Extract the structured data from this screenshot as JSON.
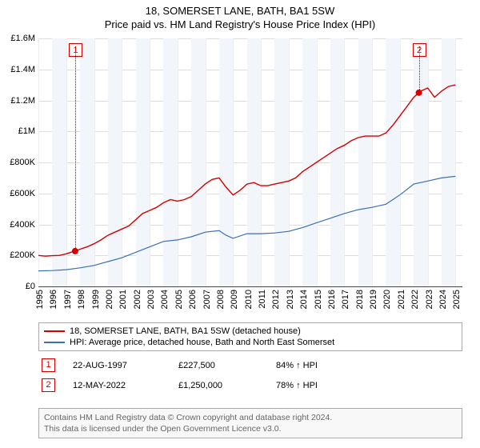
{
  "title_line1": "18, SOMERSET LANE, BATH, BA1 5SW",
  "title_line2": "Price paid vs. HM Land Registry's House Price Index (HPI)",
  "title_fontsize": 13,
  "chart": {
    "type": "line",
    "background_color": "#ffffff",
    "band_color": "#f2f6fb",
    "grid_color_h": "#dddddd",
    "grid_color_v": "#eeeeee",
    "x_years": [
      1995,
      1996,
      1997,
      1998,
      1999,
      2000,
      2001,
      2002,
      2003,
      2004,
      2005,
      2006,
      2007,
      2008,
      2009,
      2010,
      2011,
      2012,
      2013,
      2014,
      2015,
      2016,
      2017,
      2018,
      2019,
      2020,
      2021,
      2022,
      2023,
      2024,
      2025
    ],
    "xlim": [
      1995,
      2025.5
    ],
    "y_ticks": [
      0,
      200000,
      400000,
      600000,
      800000,
      1000000,
      1200000,
      1400000,
      1600000
    ],
    "y_tick_labels": [
      "£0",
      "£200K",
      "£400K",
      "£600K",
      "£800K",
      "£1M",
      "£1.2M",
      "£1.4M",
      "£1.6M"
    ],
    "ylim": [
      0,
      1600000
    ],
    "tick_fontsize": 11,
    "series": [
      {
        "id": "property",
        "label": "18, SOMERSET LANE, BATH, BA1 5SW (detached house)",
        "color": "#d40000",
        "line_width": 1.4,
        "points": [
          [
            1995.0,
            200000
          ],
          [
            1995.5,
            195000
          ],
          [
            1996.0,
            198000
          ],
          [
            1996.5,
            200000
          ],
          [
            1997.0,
            210000
          ],
          [
            1997.5,
            225000
          ],
          [
            1998.0,
            240000
          ],
          [
            1998.5,
            255000
          ],
          [
            1999.0,
            275000
          ],
          [
            1999.5,
            300000
          ],
          [
            2000.0,
            330000
          ],
          [
            2000.5,
            350000
          ],
          [
            2001.0,
            370000
          ],
          [
            2001.5,
            390000
          ],
          [
            2002.0,
            430000
          ],
          [
            2002.5,
            470000
          ],
          [
            2003.0,
            490000
          ],
          [
            2003.5,
            510000
          ],
          [
            2004.0,
            540000
          ],
          [
            2004.5,
            560000
          ],
          [
            2005.0,
            550000
          ],
          [
            2005.5,
            560000
          ],
          [
            2006.0,
            580000
          ],
          [
            2006.5,
            620000
          ],
          [
            2007.0,
            660000
          ],
          [
            2007.5,
            690000
          ],
          [
            2008.0,
            700000
          ],
          [
            2008.5,
            640000
          ],
          [
            2009.0,
            590000
          ],
          [
            2009.5,
            620000
          ],
          [
            2010.0,
            660000
          ],
          [
            2010.5,
            670000
          ],
          [
            2011.0,
            650000
          ],
          [
            2011.5,
            650000
          ],
          [
            2012.0,
            660000
          ],
          [
            2012.5,
            670000
          ],
          [
            2013.0,
            680000
          ],
          [
            2013.5,
            700000
          ],
          [
            2014.0,
            740000
          ],
          [
            2014.5,
            770000
          ],
          [
            2015.0,
            800000
          ],
          [
            2015.5,
            830000
          ],
          [
            2016.0,
            860000
          ],
          [
            2016.5,
            890000
          ],
          [
            2017.0,
            910000
          ],
          [
            2017.5,
            940000
          ],
          [
            2018.0,
            960000
          ],
          [
            2018.5,
            970000
          ],
          [
            2019.0,
            970000
          ],
          [
            2019.5,
            970000
          ],
          [
            2020.0,
            990000
          ],
          [
            2020.5,
            1040000
          ],
          [
            2021.0,
            1100000
          ],
          [
            2021.5,
            1160000
          ],
          [
            2022.0,
            1220000
          ],
          [
            2022.37,
            1250000
          ],
          [
            2022.5,
            1260000
          ],
          [
            2023.0,
            1280000
          ],
          [
            2023.5,
            1220000
          ],
          [
            2024.0,
            1260000
          ],
          [
            2024.5,
            1290000
          ],
          [
            2025.0,
            1300000
          ]
        ]
      },
      {
        "id": "hpi",
        "label": "HPI: Average price, detached house, Bath and North East Somerset",
        "color": "#3b6fb6",
        "line_width": 1.2,
        "points": [
          [
            1995.0,
            100000
          ],
          [
            1996.0,
            102000
          ],
          [
            1997.0,
            108000
          ],
          [
            1998.0,
            120000
          ],
          [
            1999.0,
            135000
          ],
          [
            2000.0,
            160000
          ],
          [
            2001.0,
            185000
          ],
          [
            2002.0,
            220000
          ],
          [
            2003.0,
            255000
          ],
          [
            2004.0,
            290000
          ],
          [
            2005.0,
            300000
          ],
          [
            2006.0,
            320000
          ],
          [
            2007.0,
            350000
          ],
          [
            2008.0,
            360000
          ],
          [
            2008.5,
            330000
          ],
          [
            2009.0,
            310000
          ],
          [
            2010.0,
            340000
          ],
          [
            2011.0,
            340000
          ],
          [
            2012.0,
            345000
          ],
          [
            2013.0,
            355000
          ],
          [
            2014.0,
            380000
          ],
          [
            2015.0,
            410000
          ],
          [
            2016.0,
            440000
          ],
          [
            2017.0,
            470000
          ],
          [
            2018.0,
            495000
          ],
          [
            2019.0,
            510000
          ],
          [
            2020.0,
            530000
          ],
          [
            2021.0,
            590000
          ],
          [
            2022.0,
            660000
          ],
          [
            2023.0,
            680000
          ],
          [
            2024.0,
            700000
          ],
          [
            2025.0,
            710000
          ]
        ]
      }
    ],
    "sale_points": [
      {
        "n": 1,
        "year": 1997.64,
        "price": 227500,
        "color": "#d40000"
      },
      {
        "n": 2,
        "year": 2022.37,
        "price": 1250000,
        "color": "#d40000"
      }
    ],
    "marker_box_size": 17
  },
  "legend": {
    "border_color": "#aaaaaa",
    "fontsize": 11
  },
  "events": [
    {
      "n": "1",
      "date": "22-AUG-1997",
      "price": "£227,500",
      "hpi": "84% ↑ HPI",
      "color": "#d40000"
    },
    {
      "n": "2",
      "date": "12-MAY-2022",
      "price": "£1,250,000",
      "hpi": "78% ↑ HPI",
      "color": "#d40000"
    }
  ],
  "footer": {
    "line1": "Contains HM Land Registry data © Crown copyright and database right 2024.",
    "line2": "This data is licensed under the Open Government Licence v3.0.",
    "border_color": "#aaaaaa",
    "bg_color": "#f8f8f8",
    "text_color": "#666666",
    "fontsize": 10.5
  }
}
